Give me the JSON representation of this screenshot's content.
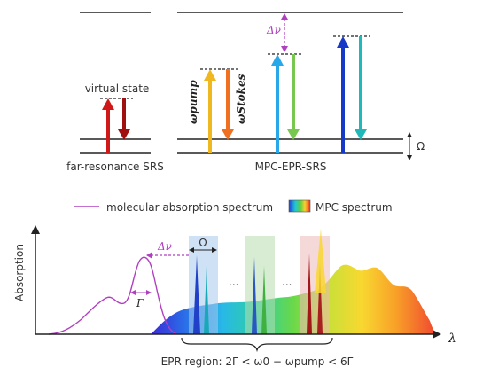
{
  "top": {
    "left_label": "far-resonance SRS",
    "right_label": "MPC-EPR-SRS",
    "virtual_state": "virtual state",
    "omega_pump": "ωpump",
    "omega_stokes": "ωStokes",
    "delta_nu": "Δν",
    "Omega": "Ω"
  },
  "bottom": {
    "legend_absorption": "molecular absorption spectrum",
    "legend_mpc": "MPC spectrum",
    "y_axis": "Absorption",
    "x_axis": "λ",
    "delta_nu": "Δν",
    "Omega": "Ω",
    "Gamma": "Γ",
    "dots": "...",
    "epr_region": "EPR region: 2Γ < ω0 − ωpump < 6Γ"
  },
  "colors": {
    "absorption_line": "#b040c0",
    "pump_left": "#d01818",
    "stokes_left": "#a01010"
  }
}
